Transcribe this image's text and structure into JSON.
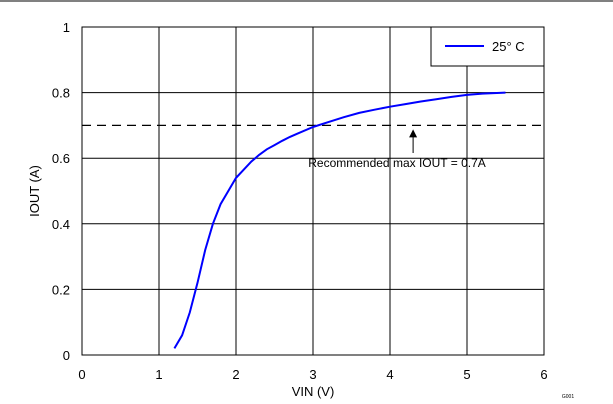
{
  "chart_data": {
    "type": "line",
    "title": "",
    "xlabel": "VIN (V)",
    "ylabel": "IOUT (A)",
    "xlim": [
      0,
      6
    ],
    "ylim": [
      0,
      1
    ],
    "x_ticks": [
      "0",
      "1",
      "2",
      "3",
      "4",
      "5",
      "6"
    ],
    "y_ticks": [
      "0",
      "0.2",
      "0.4",
      "0.6",
      "0.8",
      "1"
    ],
    "grid": true,
    "legend_position": "top-right",
    "series": [
      {
        "name": "25° C",
        "color": "#0000ff",
        "x": [
          1.2,
          1.3,
          1.4,
          1.5,
          1.6,
          1.7,
          1.8,
          1.9,
          2.0,
          2.1,
          2.2,
          2.3,
          2.4,
          2.5,
          2.6,
          2.7,
          2.8,
          3.0,
          3.2,
          3.4,
          3.6,
          3.8,
          4.0,
          4.2,
          4.4,
          4.6,
          4.8,
          5.0,
          5.2,
          5.5
        ],
        "y": [
          0.02,
          0.06,
          0.13,
          0.22,
          0.32,
          0.4,
          0.46,
          0.5,
          0.54,
          0.565,
          0.59,
          0.61,
          0.627,
          0.64,
          0.653,
          0.665,
          0.675,
          0.695,
          0.71,
          0.725,
          0.738,
          0.748,
          0.757,
          0.765,
          0.773,
          0.78,
          0.787,
          0.793,
          0.797,
          0.8
        ]
      }
    ],
    "reference_line": {
      "y": 0.7,
      "style": "dashed",
      "color": "#000000"
    },
    "annotation": {
      "text": "Recommended max IOUT = 0.7A",
      "arrow_x": 4.3,
      "arrow_to_y": 0.7
    },
    "figure_code": "G001"
  }
}
